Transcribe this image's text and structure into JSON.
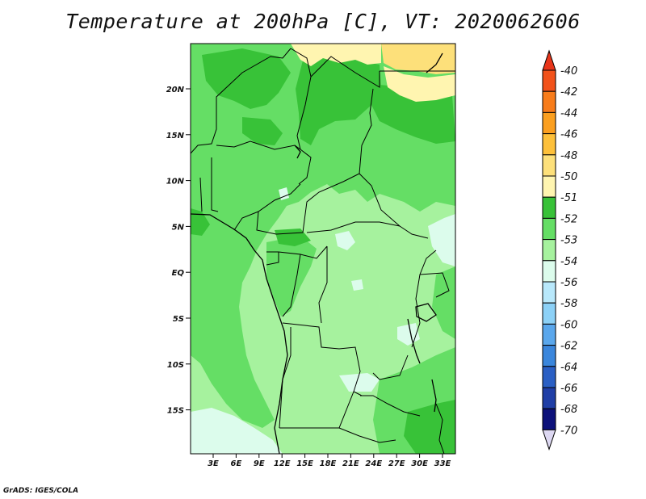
{
  "title": "Temperature at 200hPa [C], VT: 2020062606",
  "footer": "GrADS: IGES/COLA",
  "axes": {
    "lat_labels": [
      "20N",
      "15N",
      "10N",
      "5N",
      "EQ",
      "5S",
      "10S",
      "15S"
    ],
    "lon_labels": [
      "3E",
      "6E",
      "9E",
      "12E",
      "15E",
      "18E",
      "21E",
      "24E",
      "27E",
      "30E",
      "33E"
    ]
  },
  "legend": {
    "labels": [
      "-40",
      "-42",
      "-44",
      "-46",
      "-48",
      "-50",
      "-51",
      "-52",
      "-53",
      "-54",
      "-56",
      "-58",
      "-60",
      "-62",
      "-64",
      "-66",
      "-68",
      "-70"
    ],
    "colors": [
      "#e8351a",
      "#f2521a",
      "#f87c1a",
      "#fb9f1f",
      "#fdc03a",
      "#fde07a",
      "#fff5b0",
      "#38c238",
      "#65de65",
      "#a6f29e",
      "#dcfcec",
      "#b8e8fb",
      "#8cd1f7",
      "#5aa7ec",
      "#3a86dc",
      "#2a5fc4",
      "#1f3ea6",
      "#0c117a",
      "#ddd8f2"
    ]
  },
  "map_colors": {
    "warm_yellow": "#fde07a",
    "pale_yellow": "#fff5b0",
    "green_dark": "#38c238",
    "green_mid": "#65de65",
    "green_light": "#a6f29e",
    "cyan_pale": "#dcfcec"
  }
}
